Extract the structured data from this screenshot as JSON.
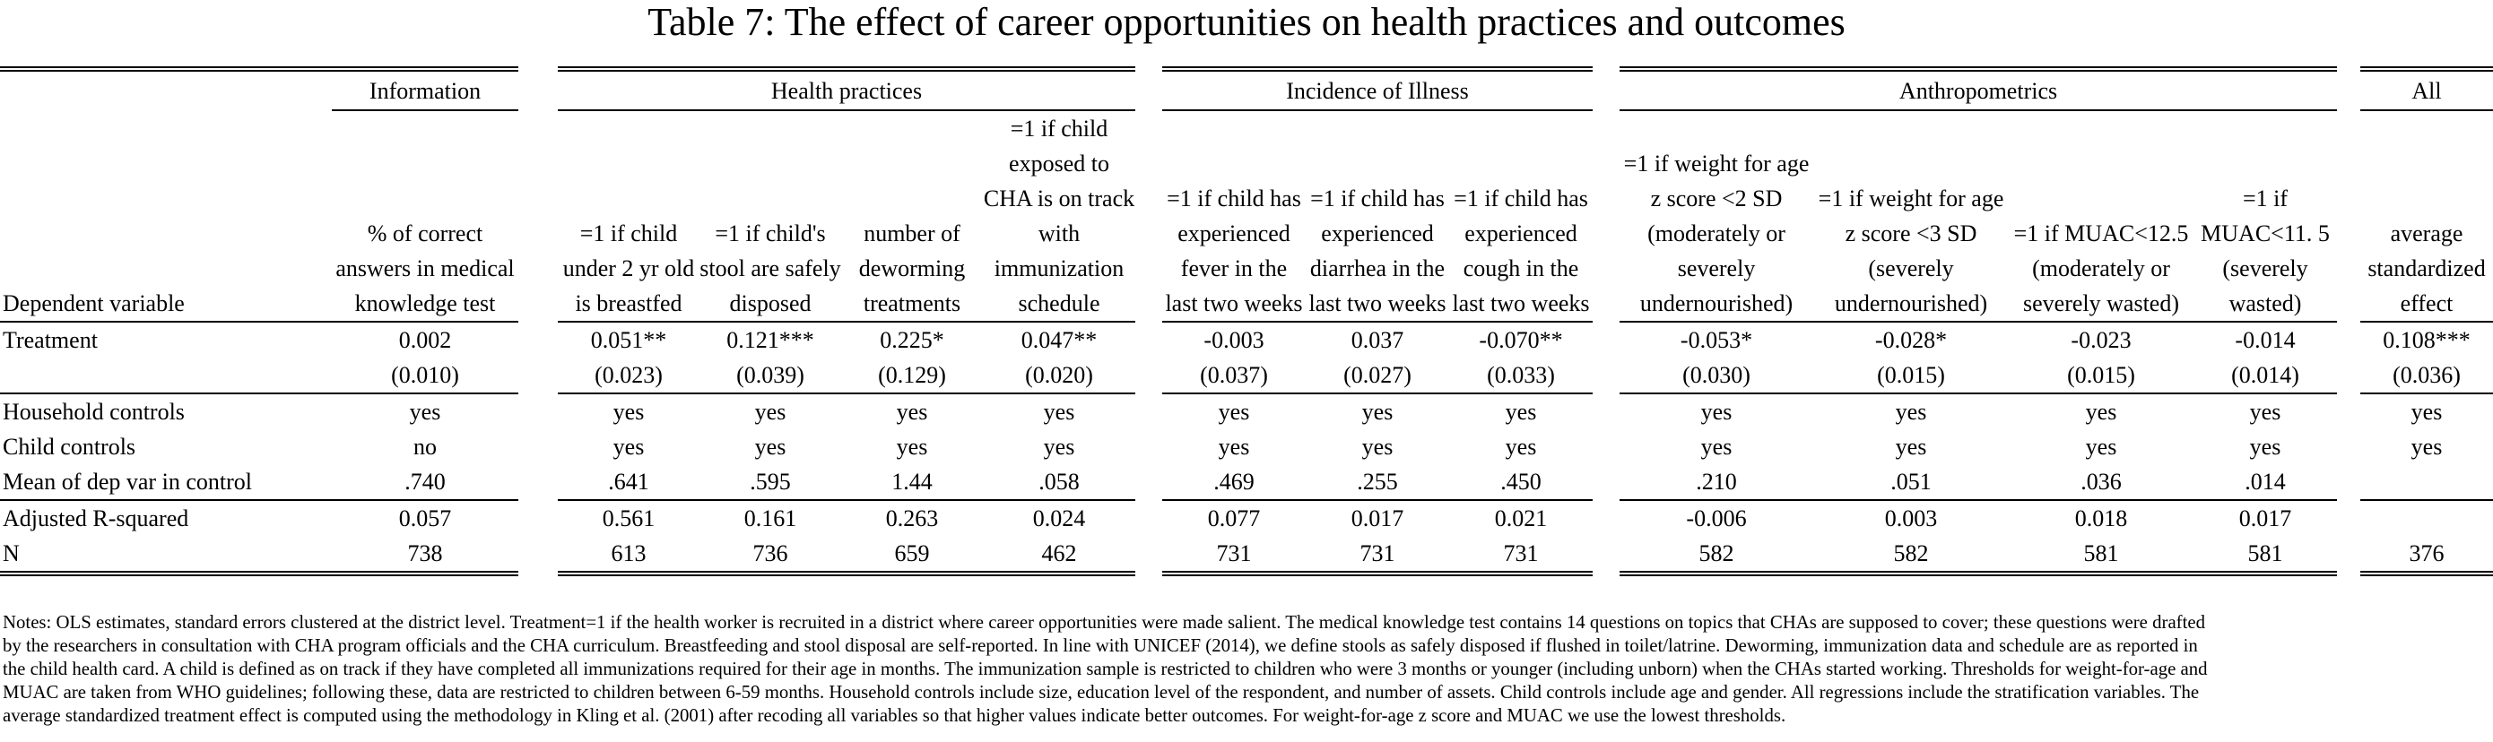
{
  "title": "Table 7: The effect of career opportunities on health practices and outcomes",
  "groups": [
    "Information",
    "Health practices",
    "Incidence of Illness",
    "Anthropometrics",
    "All"
  ],
  "dep_label": "Dependent variable",
  "col_headers": [
    "% of correct answers in medical knowledge test",
    "=1 if child under 2 yr old is breastfed",
    "=1 if child's stool are safely disposed",
    "number of deworming treatments",
    "=1 if child exposed to CHA is on track with immunization schedule",
    "=1 if child has experienced fever in the last two weeks",
    "=1 if child has experienced diarrhea in the last two weeks",
    "=1 if child has experienced cough in the last two weeks",
    "=1 if weight for age z score <2 SD (moderately or severely undernourished)",
    "=1 if weight for age z score <3 SD (severely undernourished)",
    "=1 if MUAC<12.5 (moderately or severely wasted)",
    "=1 if MUAC<11. 5 (severely wasted)",
    "average standardized effect"
  ],
  "rows": {
    "treatment": {
      "label": "Treatment",
      "coef": [
        "0.002",
        "0.051**",
        "0.121***",
        "0.225*",
        "0.047**",
        "-0.003",
        "0.037",
        "-0.070**",
        "-0.053*",
        "-0.028*",
        "-0.023",
        "-0.014",
        "0.108***"
      ],
      "se": [
        "(0.010)",
        "(0.023)",
        "(0.039)",
        "(0.129)",
        "(0.020)",
        "(0.037)",
        "(0.027)",
        "(0.033)",
        "(0.030)",
        "(0.015)",
        "(0.015)",
        "(0.014)",
        "(0.036)"
      ]
    },
    "household_controls": {
      "label": "Household controls",
      "values": [
        "yes",
        "yes",
        "yes",
        "yes",
        "yes",
        "yes",
        "yes",
        "yes",
        "yes",
        "yes",
        "yes",
        "yes",
        "yes"
      ]
    },
    "child_controls": {
      "label": "Child controls",
      "values": [
        "no",
        "yes",
        "yes",
        "yes",
        "yes",
        "yes",
        "yes",
        "yes",
        "yes",
        "yes",
        "yes",
        "yes",
        "yes"
      ]
    },
    "mean_control": {
      "label": "Mean of dep var in control",
      "values": [
        ".740",
        ".641",
        ".595",
        "1.44",
        ".058",
        ".469",
        ".255",
        ".450",
        ".210",
        ".051",
        ".036",
        ".014",
        ""
      ]
    },
    "adj_r2": {
      "label": "Adjusted R-squared",
      "values": [
        "0.057",
        "0.561",
        "0.161",
        "0.263",
        "0.024",
        "0.077",
        "0.017",
        "0.021",
        "-0.006",
        "0.003",
        "0.018",
        "0.017",
        ""
      ]
    },
    "n": {
      "label": "N",
      "values": [
        "738",
        "613",
        "736",
        "659",
        "462",
        "731",
        "731",
        "731",
        "582",
        "582",
        "581",
        "581",
        "376"
      ]
    }
  },
  "notes": [
    "Notes: OLS estimates, standard errors clustered at the district level. Treatment=1 if the health worker is recruited in a district where career opportunities were made salient. The medical knowledge test contains 14 questions on topics that CHAs are supposed to cover; these questions were drafted",
    "by the researchers in consultation with CHA program officials and the CHA curriculum. Breastfeeding and stool disposal are self-reported. In line with UNICEF (2014), we define stools as safely disposed if flushed in toilet/latrine. Deworming, immunization data and schedule are as reported in",
    "the child health card. A child is defined as on track if they have completed all immunizations required for their age in months. The immunization sample is restricted to children who were 3 months or younger (including unborn) when the CHAs started working. Thresholds for weight-for-age and",
    "MUAC are taken from WHO guidelines; following these, data are restricted to children between 6-59 months. Household controls include size, education level of the respondent, and number of assets. Child controls include age and gender. All regressions include the stratification variables. The",
    "average standardized treatment effect is computed using the methodology in Kling et al. (2001) after recoding all variables so that higher values indicate better outcomes. For weight-for-age z score and MUAC we use the lowest thresholds."
  ]
}
